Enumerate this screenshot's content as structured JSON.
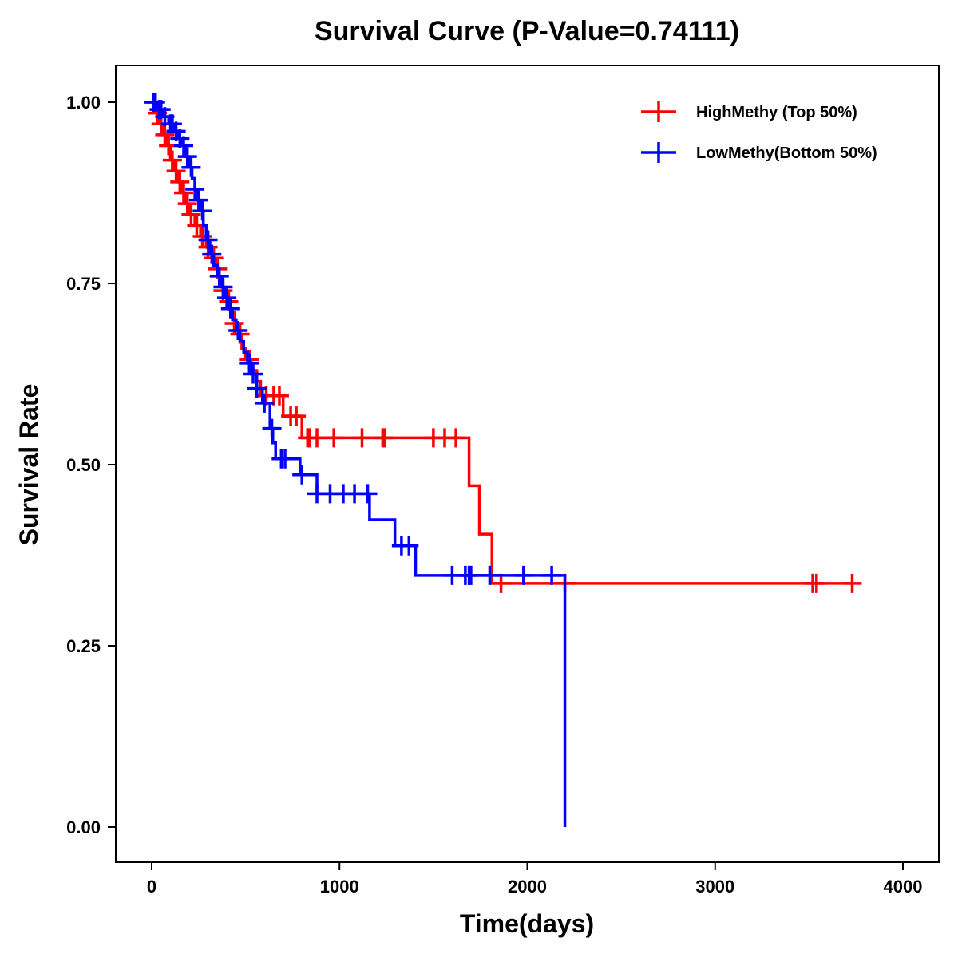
{
  "chart_data": {
    "type": "line",
    "title": "Survival Curve (P-Value=0.74111)",
    "xlabel": "Time(days)",
    "ylabel": "Survival Rate",
    "xlim": [
      -190,
      4190
    ],
    "ylim": [
      -0.048,
      1.05
    ],
    "xticks": [
      0,
      1000,
      2000,
      3000,
      4000
    ],
    "xtick_labels": [
      "0",
      "1000",
      "2000",
      "3000",
      "4000"
    ],
    "yticks": [
      0,
      0.25,
      0.5,
      0.75,
      1
    ],
    "ytick_labels": [
      "0.00",
      "0.25",
      "0.50",
      "0.75",
      "1.00"
    ],
    "grid": false,
    "legend_position": "top-right",
    "series": [
      {
        "name": "HighMethy (Top 50%)",
        "color": "#ff0000",
        "end_time": 3730,
        "steps": [
          [
            0,
            1
          ],
          [
            20,
            0.985
          ],
          [
            40,
            0.97
          ],
          [
            60,
            0.955
          ],
          [
            80,
            0.94
          ],
          [
            100,
            0.92
          ],
          [
            120,
            0.905
          ],
          [
            140,
            0.89
          ],
          [
            160,
            0.875
          ],
          [
            180,
            0.86
          ],
          [
            200,
            0.845
          ],
          [
            230,
            0.83
          ],
          [
            260,
            0.815
          ],
          [
            290,
            0.8
          ],
          [
            320,
            0.785
          ],
          [
            340,
            0.77
          ],
          [
            360,
            0.755
          ],
          [
            380,
            0.74
          ],
          [
            400,
            0.725
          ],
          [
            420,
            0.71
          ],
          [
            440,
            0.695
          ],
          [
            460,
            0.68
          ],
          [
            480,
            0.66
          ],
          [
            500,
            0.645
          ],
          [
            530,
            0.63
          ],
          [
            560,
            0.615
          ],
          [
            580,
            0.595
          ],
          [
            700,
            0.567
          ],
          [
            800,
            0.537
          ],
          [
            1690,
            0.471
          ],
          [
            1745,
            0.404
          ],
          [
            1812,
            0.336
          ]
        ],
        "censored": [
          30,
          50,
          70,
          90,
          110,
          130,
          150,
          170,
          190,
          210,
          240,
          270,
          300,
          330,
          350,
          380,
          410,
          440,
          470,
          520,
          610,
          650,
          680,
          740,
          770,
          830,
          840,
          880,
          970,
          1120,
          1230,
          1240,
          1500,
          1560,
          1620,
          1860,
          2200,
          3520,
          3540,
          3730
        ]
      },
      {
        "name": "LowMethy(Bottom 50%)",
        "color": "#0000ff",
        "end_time": 2200,
        "steps": [
          [
            0,
            1
          ],
          [
            30,
            0.99
          ],
          [
            60,
            0.98
          ],
          [
            90,
            0.97
          ],
          [
            120,
            0.96
          ],
          [
            140,
            0.95
          ],
          [
            160,
            0.94
          ],
          [
            180,
            0.925
          ],
          [
            200,
            0.91
          ],
          [
            215,
            0.895
          ],
          [
            230,
            0.88
          ],
          [
            245,
            0.865
          ],
          [
            260,
            0.85
          ],
          [
            275,
            0.83
          ],
          [
            290,
            0.81
          ],
          [
            310,
            0.79
          ],
          [
            330,
            0.775
          ],
          [
            350,
            0.76
          ],
          [
            370,
            0.745
          ],
          [
            390,
            0.73
          ],
          [
            410,
            0.715
          ],
          [
            430,
            0.7
          ],
          [
            450,
            0.685
          ],
          [
            470,
            0.67
          ],
          [
            490,
            0.655
          ],
          [
            510,
            0.64
          ],
          [
            530,
            0.625
          ],
          [
            560,
            0.605
          ],
          [
            590,
            0.585
          ],
          [
            630,
            0.55
          ],
          [
            645,
            0.53
          ],
          [
            660,
            0.508
          ],
          [
            790,
            0.486
          ],
          [
            880,
            0.46
          ],
          [
            1160,
            0.424
          ],
          [
            1295,
            0.388
          ],
          [
            1405,
            0.347
          ],
          [
            2200,
            0
          ]
        ],
        "censored": [
          10,
          20,
          40,
          50,
          70,
          100,
          110,
          130,
          150,
          170,
          190,
          210,
          230,
          250,
          270,
          300,
          320,
          360,
          380,
          400,
          420,
          460,
          520,
          540,
          560,
          600,
          640,
          690,
          710,
          800,
          880,
          950,
          1020,
          1080,
          1150,
          1330,
          1370,
          1600,
          1670,
          1690,
          1700,
          1800,
          1980,
          2130
        ]
      }
    ]
  }
}
